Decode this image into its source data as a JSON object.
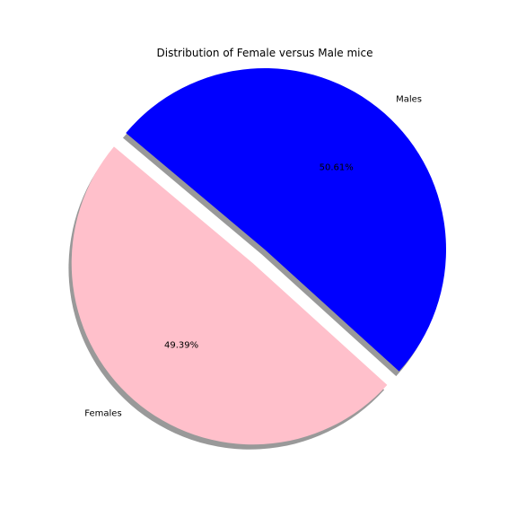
{
  "chart_data": {
    "type": "pie",
    "title": "Distribution of Female versus Male mice",
    "labels": [
      "Females",
      "Males"
    ],
    "values": [
      49.39,
      50.61
    ],
    "autopct": [
      "49.39%",
      "50.61%"
    ],
    "colors": [
      "#ffc0cb",
      "#0000ff"
    ],
    "explode": [
      0.1,
      0
    ],
    "start_angle": 140,
    "shadow": true,
    "legend": "none"
  }
}
